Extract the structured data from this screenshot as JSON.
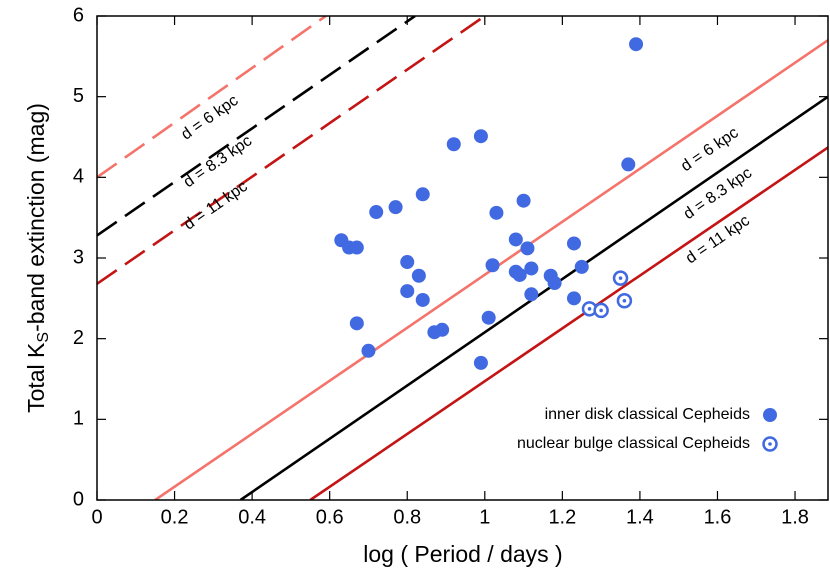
{
  "chart_data": {
    "type": "scatter",
    "xlabel": "log ( Period / days )",
    "ylabel": [
      "Total K",
      "S",
      "-band extinction (mag)"
    ],
    "xlim": [
      0,
      1.885
    ],
    "ylim": [
      0,
      6
    ],
    "xticks": [
      0,
      0.2,
      0.4,
      0.6,
      0.8,
      1,
      1.2,
      1.4,
      1.6,
      1.8
    ],
    "yticks": [
      0,
      1,
      2,
      3,
      4,
      5,
      6
    ],
    "legend": "lower right",
    "series": [
      {
        "name": "inner disk classical Cepheids",
        "color": "#4169e1",
        "marker": "filled",
        "x": [
          0.63,
          0.65,
          0.67,
          0.67,
          0.7,
          0.72,
          0.77,
          0.84,
          0.8,
          0.83,
          0.8,
          0.84,
          0.87,
          0.89,
          0.92,
          0.99,
          0.99,
          1.01,
          1.02,
          1.03,
          1.08,
          1.1,
          1.11,
          1.08,
          1.09,
          1.12,
          1.12,
          1.17,
          1.18,
          1.23,
          1.23,
          1.25,
          1.37,
          1.39
        ],
        "values": [
          3.22,
          3.13,
          3.13,
          2.19,
          1.85,
          3.57,
          3.63,
          3.79,
          2.95,
          2.78,
          2.59,
          2.48,
          2.08,
          2.11,
          4.41,
          4.51,
          1.7,
          2.26,
          2.91,
          3.56,
          3.23,
          3.71,
          3.12,
          2.83,
          2.79,
          2.87,
          2.55,
          2.78,
          2.69,
          3.18,
          2.5,
          2.89,
          4.16,
          5.65
        ]
      },
      {
        "name": "nuclear bulge classical Cepheids",
        "color": "#4169e1",
        "marker": "ring",
        "x": [
          1.35,
          1.36,
          1.27,
          1.3
        ],
        "values": [
          2.75,
          2.47,
          2.37,
          2.35
        ]
      }
    ],
    "lines": [
      {
        "name": "d = 6 kpc",
        "color": "#f4736b",
        "dashed": false,
        "x": [
          0.15,
          1.885
        ],
        "values": [
          0,
          5.7
        ]
      },
      {
        "name": "d = 8.3 kpc",
        "color": "#000000",
        "dashed": false,
        "x": [
          0.37,
          1.885
        ],
        "values": [
          0,
          5.0
        ]
      },
      {
        "name": "d = 11 kpc",
        "color": "#c41414",
        "dashed": false,
        "x": [
          0.55,
          1.885
        ],
        "values": [
          0,
          4.37
        ]
      },
      {
        "name": "d = 6 kpc",
        "color": "#f4736b",
        "dashed": true,
        "x": [
          0,
          0.59
        ],
        "values": [
          4,
          6
        ]
      },
      {
        "name": "d = 8.3 kpc",
        "color": "#000000",
        "dashed": true,
        "x": [
          0,
          0.82
        ],
        "values": [
          3.28,
          6
        ]
      },
      {
        "name": "d = 11 kpc",
        "color": "#c41414",
        "dashed": true,
        "x": [
          0,
          1.0
        ],
        "values": [
          2.68,
          6
        ]
      }
    ]
  }
}
